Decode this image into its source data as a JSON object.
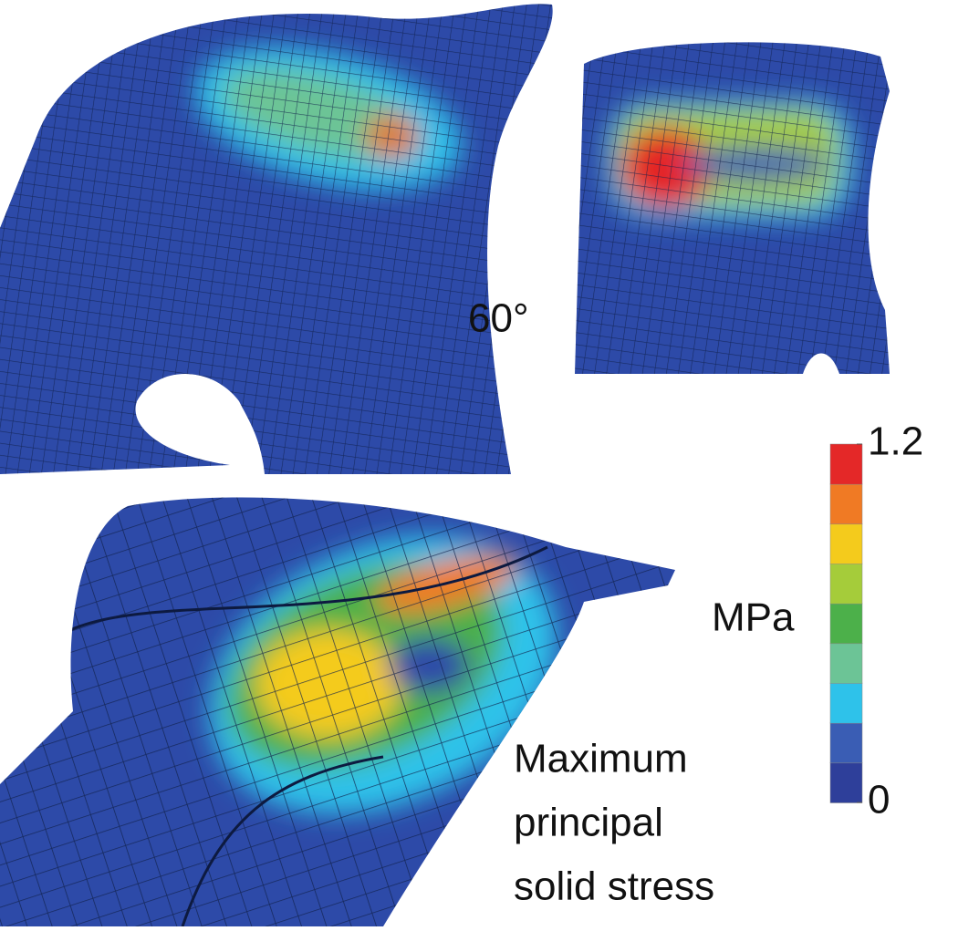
{
  "view_label": "60°",
  "colorbar": {
    "unit": "MPa",
    "ticks": [
      {
        "value": 0,
        "label": "0"
      },
      {
        "value": 1.2,
        "label": "1.2"
      }
    ],
    "colors": [
      "#2e3f9a",
      "#3a5db4",
      "#2ec2ea",
      "#6cc496",
      "#4cb04a",
      "#a5cc3a",
      "#f4cb1c",
      "#f07a24",
      "#e42828"
    ]
  },
  "legend_label": [
    "Maximum",
    "principal",
    "solid stress"
  ]
}
